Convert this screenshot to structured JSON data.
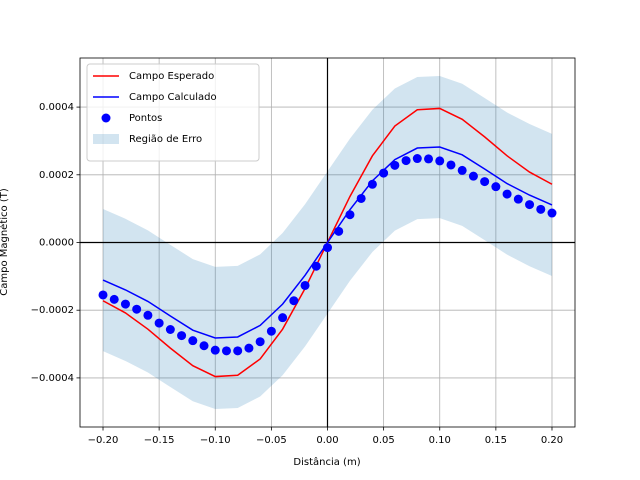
{
  "chart_data": {
    "type": "line",
    "xlabel": "Distância (m)",
    "ylabel": "Campo Magnético (T)",
    "xlim": [
      -0.2205,
      0.2205
    ],
    "ylim": [
      -0.000545,
      0.000545
    ],
    "xticks": [
      {
        "value": -0.2,
        "label": "−0.20"
      },
      {
        "value": -0.15,
        "label": "−0.15"
      },
      {
        "value": -0.1,
        "label": "−0.10"
      },
      {
        "value": -0.05,
        "label": "−0.05"
      },
      {
        "value": 0,
        "label": "0.00"
      },
      {
        "value": 0.05,
        "label": "0.05"
      },
      {
        "value": 0.1,
        "label": "0.10"
      },
      {
        "value": 0.15,
        "label": "0.15"
      },
      {
        "value": 0.2,
        "label": "0.20"
      }
    ],
    "yticks": [
      {
        "value": -0.0004,
        "label": "−0.0004"
      },
      {
        "value": -0.0002,
        "label": "−0.0002"
      },
      {
        "value": 0,
        "label": "0.0000"
      },
      {
        "value": 0.0002,
        "label": "0.0002"
      },
      {
        "value": 0.0004,
        "label": "0.0004"
      }
    ],
    "grid": true,
    "legend": "upper left",
    "series": [
      {
        "name": "Região de Erro",
        "type": "band",
        "color": "#1f77b4",
        "x": [
          -0.2,
          -0.18,
          -0.16,
          -0.14,
          -0.12,
          -0.1,
          -0.08,
          -0.06,
          -0.04,
          -0.02,
          0,
          0.02,
          0.04,
          0.06,
          0.08,
          0.1,
          0.12,
          0.14,
          0.16,
          0.18,
          0.2
        ],
        "upper": [
          9.9e-05,
          7e-05,
          3.6e-05,
          -7e-06,
          -4.9e-05,
          -7.2e-05,
          -6.9e-05,
          -3.5e-05,
          2.8e-05,
          0.000113,
          0.00021,
          0.000307,
          0.000392,
          0.000455,
          0.000489,
          0.000492,
          0.000469,
          0.000427,
          0.000384,
          0.00035,
          0.000321
        ],
        "lower": [
          -0.000321,
          -0.00035,
          -0.000384,
          -0.000427,
          -0.000469,
          -0.000492,
          -0.000489,
          -0.000455,
          -0.000392,
          -0.000307,
          -0.00021,
          -0.000113,
          -2.8e-05,
          3.5e-05,
          6.9e-05,
          7.2e-05,
          4.9e-05,
          7e-06,
          -3.6e-05,
          -7e-05,
          -9.9e-05
        ]
      },
      {
        "name": "Campo Esperado",
        "type": "line",
        "color": "#ff0000",
        "x": [
          -0.2,
          -0.18,
          -0.16,
          -0.14,
          -0.12,
          -0.1,
          -0.08,
          -0.06,
          -0.04,
          -0.02,
          0,
          0.02,
          0.04,
          0.06,
          0.08,
          0.1,
          0.12,
          0.14,
          0.16,
          0.18,
          0.2
        ],
        "values": [
          -0.000172,
          -0.000208,
          -0.000256,
          -0.000312,
          -0.000364,
          -0.000396,
          -0.000392,
          -0.000344,
          -0.000256,
          -0.000136,
          0,
          0.000136,
          0.000256,
          0.000344,
          0.000392,
          0.000396,
          0.000364,
          0.000312,
          0.000256,
          0.000208,
          0.000172
        ]
      },
      {
        "name": "Campo Calculado",
        "type": "line",
        "color": "#0000ff",
        "x": [
          -0.2,
          -0.18,
          -0.16,
          -0.14,
          -0.12,
          -0.1,
          -0.08,
          -0.06,
          -0.04,
          -0.02,
          0,
          0.02,
          0.04,
          0.06,
          0.08,
          0.1,
          0.12,
          0.14,
          0.16,
          0.18,
          0.2
        ],
        "values": [
          -0.000111,
          -0.00014,
          -0.000174,
          -0.000217,
          -0.000259,
          -0.000282,
          -0.000279,
          -0.000245,
          -0.000182,
          -9.7e-05,
          0,
          9.7e-05,
          0.000182,
          0.000245,
          0.000279,
          0.000282,
          0.000259,
          0.000217,
          0.000174,
          0.00014,
          0.000111
        ]
      },
      {
        "name": "Pontos",
        "type": "scatter",
        "color": "#0000ff",
        "x": [
          -0.2,
          -0.19,
          -0.18,
          -0.17,
          -0.16,
          -0.15,
          -0.14,
          -0.13,
          -0.12,
          -0.11,
          -0.1,
          -0.09,
          -0.08,
          -0.07,
          -0.06,
          -0.05,
          -0.04,
          -0.03,
          -0.02,
          -0.01,
          0,
          0.01,
          0.02,
          0.03,
          0.04,
          0.05,
          0.06,
          0.07,
          0.08,
          0.09,
          0.1,
          0.11,
          0.12,
          0.13,
          0.14,
          0.15,
          0.16,
          0.17,
          0.18,
          0.19,
          0.2
        ],
        "values": [
          -0.000155,
          -0.000168,
          -0.000182,
          -0.000197,
          -0.000215,
          -0.000238,
          -0.000257,
          -0.000275,
          -0.00029,
          -0.000305,
          -0.000318,
          -0.00032,
          -0.00032,
          -0.000312,
          -0.000293,
          -0.000262,
          -0.000222,
          -0.000172,
          -0.000127,
          -7e-05,
          -1.5e-05,
          3.3e-05,
          8.2e-05,
          0.00013,
          0.000172,
          0.000205,
          0.000228,
          0.000242,
          0.000248,
          0.000247,
          0.000241,
          0.000229,
          0.000213,
          0.000196,
          0.00018,
          0.000165,
          0.000143,
          0.000128,
          0.000112,
          9.8e-05,
          8.7e-05
        ]
      }
    ]
  }
}
